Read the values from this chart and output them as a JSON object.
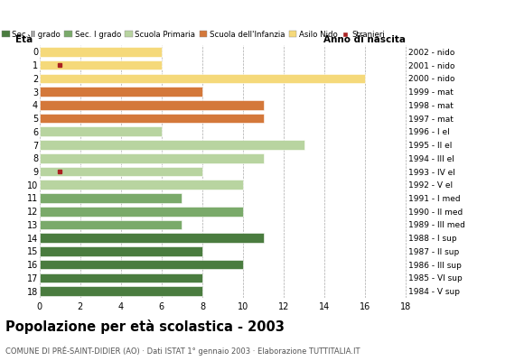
{
  "ages": [
    0,
    1,
    2,
    3,
    4,
    5,
    6,
    7,
    8,
    9,
    10,
    11,
    12,
    13,
    14,
    15,
    16,
    17,
    18
  ],
  "values": [
    6,
    6,
    16,
    8,
    11,
    11,
    6,
    13,
    11,
    8,
    10,
    7,
    10,
    7,
    11,
    8,
    10,
    8,
    8
  ],
  "colors": [
    "#f5d97a",
    "#f5d97a",
    "#f5d97a",
    "#d4783a",
    "#d4783a",
    "#d4783a",
    "#b8d4a0",
    "#b8d4a0",
    "#b8d4a0",
    "#b8d4a0",
    "#b8d4a0",
    "#7aaa6a",
    "#7aaa6a",
    "#7aaa6a",
    "#4a7c3f",
    "#4a7c3f",
    "#4a7c3f",
    "#4a7c3f",
    "#4a7c3f"
  ],
  "stranieri": [
    0,
    1,
    0,
    0,
    0,
    0,
    0,
    0,
    0,
    1,
    0,
    0,
    0,
    0,
    0,
    0,
    0,
    0,
    0
  ],
  "right_labels": [
    "2002 - nido",
    "2001 - nido",
    "2000 - nido",
    "1999 - mat",
    "1998 - mat",
    "1997 - mat",
    "1996 - I el",
    "1995 - II el",
    "1994 - III el",
    "1993 - IV el",
    "1992 - V el",
    "1991 - I med",
    "1990 - II med",
    "1989 - III med",
    "1988 - I sup",
    "1987 - II sup",
    "1986 - III sup",
    "1985 - VI sup",
    "1984 - V sup"
  ],
  "legend_labels": [
    "Sec. II grado",
    "Sec. I grado",
    "Scuola Primaria",
    "Scuola dell'Infanzia",
    "Asilo Nido",
    "Stranieri"
  ],
  "legend_colors": [
    "#4a7c3f",
    "#7aaa6a",
    "#b8d4a0",
    "#d4783a",
    "#f5d97a",
    "#aa2222"
  ],
  "title": "Popolazione per età scolastica - 2003",
  "subtitle": "COMUNE DI PRÉ-SAINT-DIDIER (AO) · Dati ISTAT 1° gennaio 2003 · Elaborazione TUTTITALIA.IT",
  "xlabel_left": "Età",
  "xlabel_right": "Anno di nascita",
  "xlim": [
    0,
    18
  ],
  "ylim_bottom": -0.5,
  "ylim_top": 18.5,
  "background_color": "#ffffff",
  "stranieri_color": "#aa2222",
  "stranieri_x": 1.0,
  "bar_height": 0.72
}
